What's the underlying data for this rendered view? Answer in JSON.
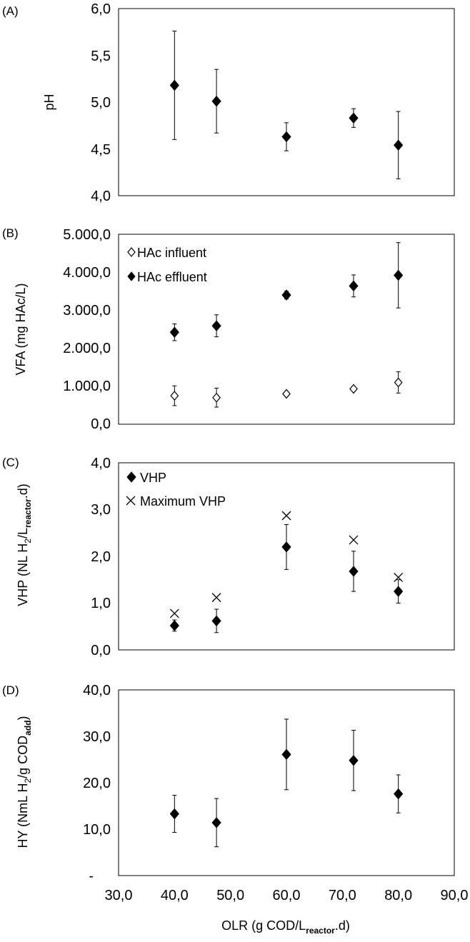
{
  "chart_data": [
    {
      "panel": "(A)",
      "type": "scatter",
      "ylabel": "pH",
      "ylim": [
        4.0,
        6.0
      ],
      "yticks": [
        "6,0",
        "5,5",
        "5,0",
        "4,5",
        "4,0"
      ],
      "yticks_values": [
        6.0,
        5.5,
        5.0,
        4.5,
        4.0
      ],
      "xlim": [
        30,
        90
      ],
      "series": [
        {
          "name": "pH",
          "marker": "diamond-filled",
          "x": [
            40,
            47.5,
            60,
            72,
            80
          ],
          "y": [
            5.18,
            5.01,
            4.63,
            4.83,
            4.54
          ],
          "err": [
            0.58,
            0.34,
            0.15,
            0.1,
            0.36
          ]
        }
      ]
    },
    {
      "panel": "(B)",
      "type": "scatter",
      "ylabel": "VFA (mg HAc/L)",
      "ylim": [
        0,
        5000
      ],
      "yticks": [
        "5.000,0",
        "4.000,0",
        "3.000,0",
        "2.000,0",
        "1.000,0",
        "0,0"
      ],
      "yticks_values": [
        5000,
        4000,
        3000,
        2000,
        1000,
        0
      ],
      "xlim": [
        30,
        90
      ],
      "series": [
        {
          "name": "HAc influent",
          "marker": "diamond-open",
          "x": [
            40,
            47.5,
            60,
            72,
            80
          ],
          "y": [
            750,
            700,
            800,
            930,
            1100
          ],
          "err": [
            260,
            250,
            0,
            0,
            280
          ]
        },
        {
          "name": "HAc effluent",
          "marker": "diamond-filled",
          "x": [
            40,
            47.5,
            60,
            72,
            80
          ],
          "y": [
            2420,
            2590,
            3400,
            3640,
            3920
          ],
          "err": [
            220,
            290,
            100,
            290,
            860
          ]
        }
      ]
    },
    {
      "panel": "(C)",
      "type": "scatter",
      "ylabel_main": "VHP (NL H",
      "ylabel_sub1": "2",
      "ylabel_mid": "/L",
      "ylabel_sub2": "reactor",
      "ylabel_end": ".d)",
      "ylim": [
        0,
        4.0
      ],
      "yticks": [
        "4,0",
        "3,0",
        "2,0",
        "1,0",
        "0,0"
      ],
      "yticks_values": [
        4.0,
        3.0,
        2.0,
        1.0,
        0.0
      ],
      "xlim": [
        30,
        90
      ],
      "series": [
        {
          "name": "VHP",
          "marker": "diamond-filled",
          "x": [
            40,
            47.5,
            60,
            72,
            80
          ],
          "y": [
            0.52,
            0.62,
            2.2,
            1.68,
            1.25
          ],
          "err": [
            0.12,
            0.25,
            0.48,
            0.43,
            0.25
          ]
        },
        {
          "name": "Maximum VHP",
          "marker": "x",
          "x": [
            40,
            47.5,
            60,
            72,
            80
          ],
          "y": [
            0.78,
            1.12,
            2.87,
            2.35,
            1.55
          ],
          "err": [
            0,
            0,
            0,
            0,
            0
          ]
        }
      ]
    },
    {
      "panel": "(D)",
      "type": "scatter",
      "ylabel_main": "HY (NmL H",
      "ylabel_sub1": "2",
      "ylabel_mid": "/g COD",
      "ylabel_sub2": "add",
      "ylabel_end": ")",
      "ylim": [
        0,
        40
      ],
      "yticks": [
        "40,0",
        "30,0",
        "20,0",
        "10,0",
        "-"
      ],
      "yticks_values": [
        40,
        30,
        20,
        10,
        0
      ],
      "xlim": [
        30,
        90
      ],
      "xticks": [
        "30,0",
        "40,0",
        "50,0",
        "60,0",
        "70,0",
        "80,0",
        "90,0"
      ],
      "xticks_values": [
        30,
        40,
        50,
        60,
        70,
        80,
        90
      ],
      "xlabel_main": "OLR (g COD/L",
      "xlabel_sub": "reactor",
      "xlabel_end": ".d)",
      "series": [
        {
          "name": "HY",
          "marker": "diamond-filled",
          "x": [
            40,
            47.5,
            60,
            72,
            80
          ],
          "y": [
            13.3,
            11.4,
            26.1,
            24.8,
            17.6
          ],
          "err": [
            4.0,
            5.2,
            7.6,
            6.5,
            4.1
          ]
        }
      ]
    }
  ]
}
